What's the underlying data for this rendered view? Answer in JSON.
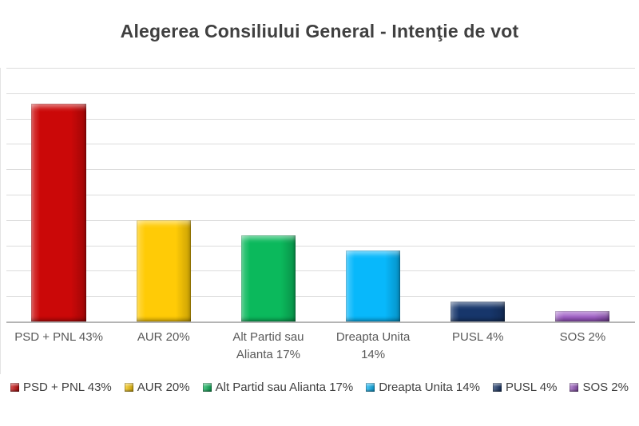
{
  "chart_data": {
    "type": "bar",
    "title": "Alegerea Consiliului General - Intenţie de vot",
    "categories": [
      "PSD + PNL 43%",
      "AUR 20%",
      "Alt Partid sau Alianta 17%",
      "Dreapta Unita 14%",
      "PUSL 4%",
      "SOS 2%"
    ],
    "values": [
      43,
      20,
      17,
      14,
      4,
      2
    ],
    "colors": [
      "#cb0808",
      "#ffcb06",
      "#0bb95c",
      "#08b8fb",
      "#17366b",
      "#9a58c2"
    ],
    "xlabel": "",
    "ylabel": "",
    "ylim": [
      0,
      50
    ],
    "gridline_step": 5,
    "grid": true,
    "y_axis_labels_visible": false,
    "legend_position": "bottom",
    "legend": [
      "PSD + PNL 43%",
      "AUR 20%",
      "Alt Partid sau Alianta 17%",
      "Dreapta Unita 14%",
      "PUSL 4%",
      "SOS 2%"
    ]
  },
  "colors": {
    "background": "#ffffff",
    "title_text": "#404040",
    "axis_label_text": "#595959",
    "legend_text": "#404040",
    "gridline": "#dcdcdc",
    "axis_line": "#b4b4b4"
  }
}
